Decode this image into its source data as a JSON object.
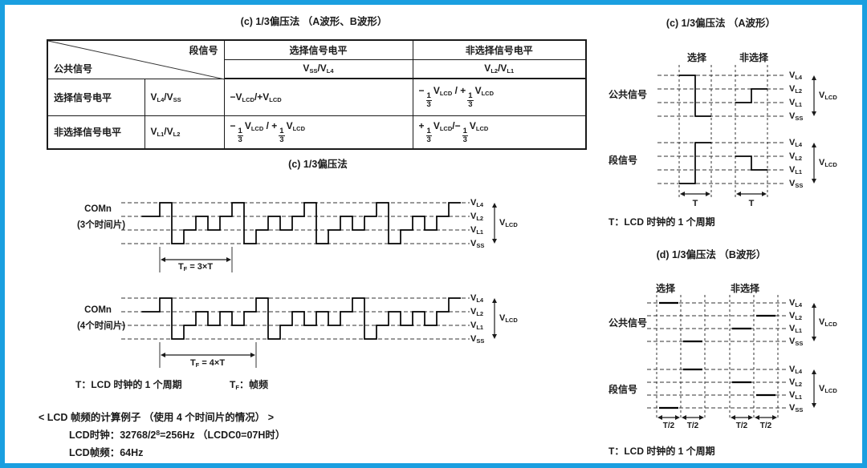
{
  "page": {
    "border_color": "#1A9FE0"
  },
  "titles": {
    "table": "(c) 1/3偏压法 （A波形、B波形）",
    "diagram": "(c) 1/3偏压法"
  },
  "table": {
    "corner_top": "段信号",
    "corner_bottom": "公共信号",
    "head_select": "选择信号电平",
    "head_nonselect": "非选择信号电平",
    "sub_select": "V(SS)/V(L4)",
    "sub_nonselect": "V(L2)/V(L1)",
    "rows": [
      {
        "label": "选择信号电平",
        "signal": "V(L4)/V(SS)",
        "sel": "−V(LCD)/+V(LCD)",
        "nonsel": "−[1/3]V(LCD) / +[1/3]V(LCD)"
      },
      {
        "label": "非选择信号电平",
        "signal": "V(L1)/V(L2)",
        "sel": "−[1/3]V(LCD) / +[1/3]V(LCD)",
        "nonsel": "+[1/3]V(LCD)/−[1/3]V(LCD)"
      }
    ]
  },
  "levels": [
    "V(L4)",
    "V(L2)",
    "V(L1)",
    "V(SS)"
  ],
  "vlcd": "V(LCD)",
  "waveforms": [
    {
      "label": "COMn",
      "sublabel": "(3个时间片)",
      "lead_level": 2,
      "lead_units": 1.5,
      "frame": [
        3,
        0,
        1,
        2,
        1,
        2
      ],
      "repeats": 4,
      "tail_level": 3,
      "tail_units": 1,
      "tf_label": "T(F) = 3×T"
    },
    {
      "label": "COMn",
      "sublabel": "(4个时间片)",
      "lead_level": 2,
      "lead_units": 1.5,
      "frame": [
        3,
        0,
        1,
        2,
        1,
        2,
        1,
        2
      ],
      "repeats": 3,
      "tail_level": 3,
      "tail_units": 1,
      "tf_label": "T(F) = 4×T"
    }
  ],
  "captions": {
    "left_t": "T：LCD 时钟的 1 个周期",
    "left_tf": "T(F)：帧频"
  },
  "example": {
    "line1": "< LCD 帧频的计算例子 （使用 4 个时间片的情况） >",
    "line2": "LCD时钟：32768/2^(8)=256Hz （LCDC0=07H时）",
    "line3": "LCD帧频：64Hz"
  },
  "panel_a": {
    "title": "(c) 1/3偏压法 （A波形）",
    "select_label": "选择",
    "nonselect_label": "非选择",
    "common_label": "公共信号",
    "segment_label": "段信号",
    "common_levels": {
      "sel": [
        3,
        0
      ],
      "nonsel": [
        1,
        2
      ]
    },
    "segment_levels": {
      "sel": [
        0,
        3
      ],
      "nonsel": [
        2,
        1
      ]
    },
    "t_labels": [
      "T",
      "T"
    ],
    "caption": "T：LCD 时钟的 1 个周期"
  },
  "panel_b": {
    "title": "(d) 1/3偏压法 （B波形）",
    "select_label": "选择",
    "nonselect_label": "非选择",
    "common_label": "公共信号",
    "segment_label": "段信号",
    "common_levels": {
      "sel": [
        3,
        0
      ],
      "nonsel": [
        1,
        2
      ]
    },
    "segment_levels": {
      "sel": [
        0,
        3
      ],
      "nonsel": [
        2,
        1
      ]
    },
    "t_labels": [
      "T/2",
      "T/2",
      "T/2",
      "T/2"
    ],
    "caption": "T：LCD 时钟的 1 个周期"
  }
}
